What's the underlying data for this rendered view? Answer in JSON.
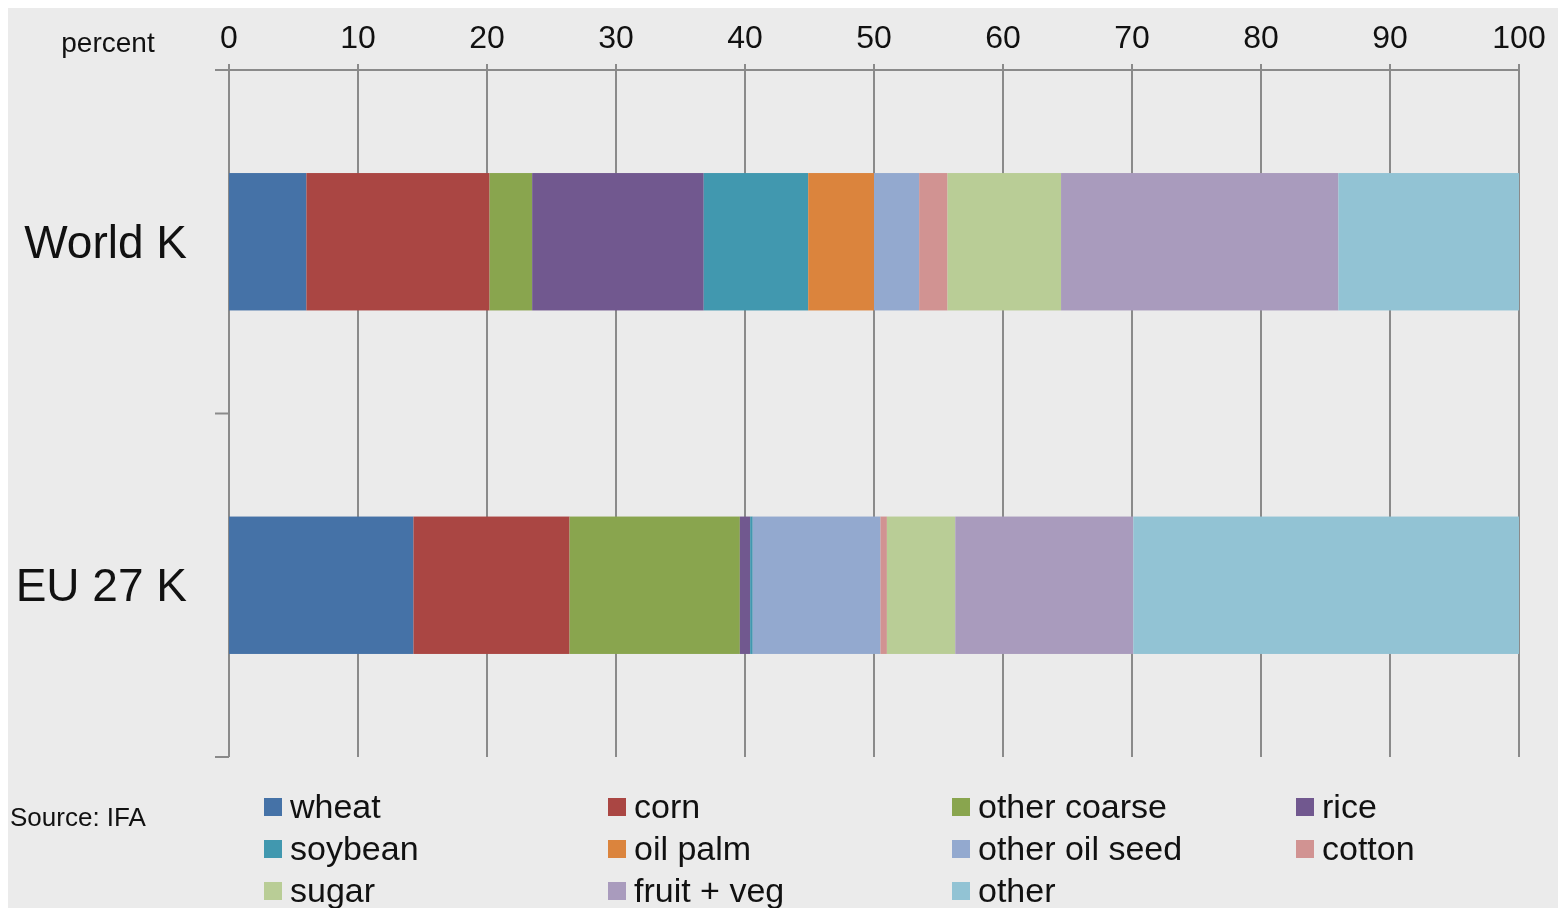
{
  "chart_data": {
    "type": "bar",
    "orientation": "horizontal",
    "stacked": true,
    "xlabel": "percent",
    "categories": [
      "World K",
      "EU 27 K"
    ],
    "xlim": [
      0,
      100
    ],
    "xticks": [
      0,
      10,
      20,
      30,
      40,
      50,
      60,
      70,
      80,
      90,
      100
    ],
    "grid": "x",
    "legend": "bottom",
    "annotations": [
      "Source: IFA"
    ],
    "series": [
      {
        "name": "wheat",
        "color": "#4572a7",
        "values": [
          6.0,
          14.3
        ]
      },
      {
        "name": "corn",
        "color": "#aa4643",
        "values": [
          14.2,
          12.1
        ]
      },
      {
        "name": "other coarse",
        "color": "#89a54e",
        "values": [
          3.3,
          13.2
        ]
      },
      {
        "name": "rice",
        "color": "#71588f",
        "values": [
          13.3,
          0.8
        ]
      },
      {
        "name": "soybean",
        "color": "#4198af",
        "values": [
          8.1,
          0.2
        ]
      },
      {
        "name": "oil palm",
        "color": "#db843d",
        "values": [
          5.1,
          0
        ]
      },
      {
        "name": "other oil seed",
        "color": "#93a9cf",
        "values": [
          3.5,
          9.9
        ]
      },
      {
        "name": "cotton",
        "color": "#d19392",
        "values": [
          2.2,
          0.5
        ]
      },
      {
        "name": "sugar",
        "color": "#b9cd96",
        "values": [
          8.8,
          5.3
        ]
      },
      {
        "name": "fruit + veg",
        "color": "#a99bbd",
        "values": [
          21.5,
          13.8
        ]
      },
      {
        "name": "other",
        "color": "#92c3d4",
        "values": [
          14.0,
          29.9
        ]
      }
    ]
  }
}
